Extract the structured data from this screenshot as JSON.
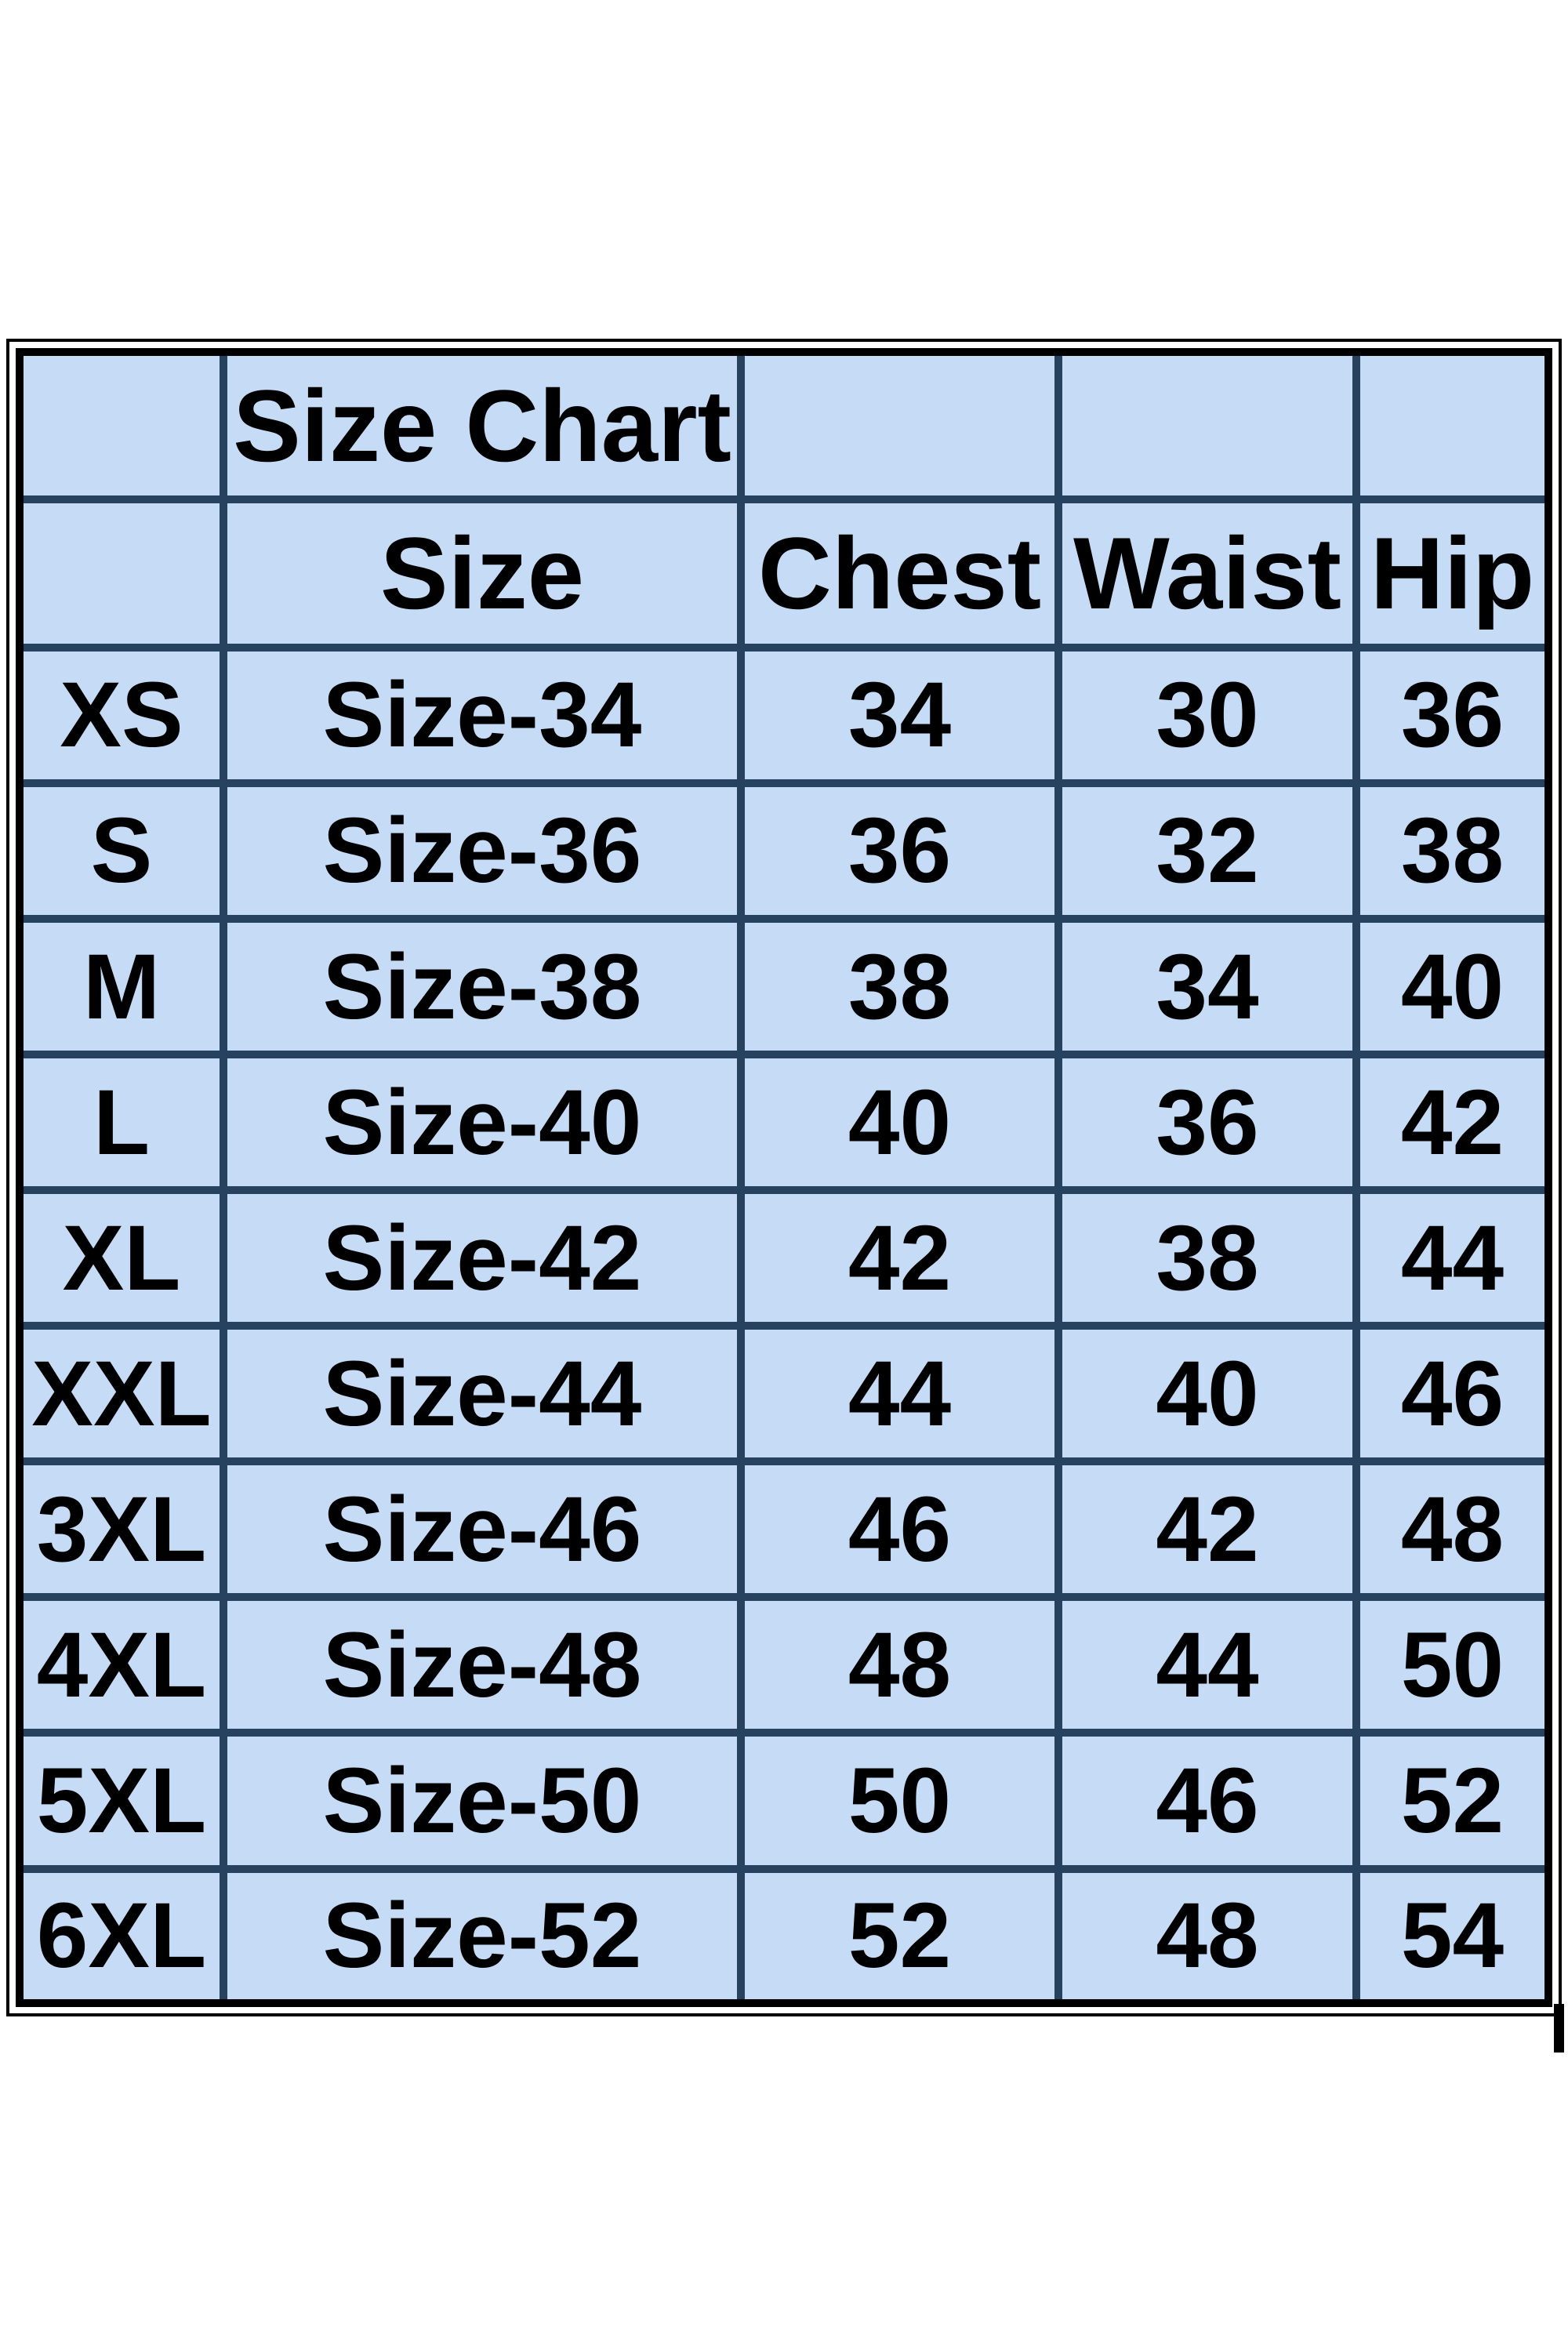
{
  "table": {
    "title": "Size Chart",
    "columns": [
      "Size",
      "Chest",
      "Waist",
      "Hip"
    ],
    "rows": [
      {
        "label": "XS",
        "size": "Size-34",
        "chest": "34",
        "waist": "30",
        "hip": "36"
      },
      {
        "label": "S",
        "size": "Size-36",
        "chest": "36",
        "waist": "32",
        "hip": "38"
      },
      {
        "label": "M",
        "size": "Size-38",
        "chest": "38",
        "waist": "34",
        "hip": "40"
      },
      {
        "label": "L",
        "size": "Size-40",
        "chest": "40",
        "waist": "36",
        "hip": "42"
      },
      {
        "label": "XL",
        "size": "Size-42",
        "chest": "42",
        "waist": "38",
        "hip": "44"
      },
      {
        "label": "XXL",
        "size": "Size-44",
        "chest": "44",
        "waist": "40",
        "hip": "46"
      },
      {
        "label": "3XL",
        "size": "Size-46",
        "chest": "46",
        "waist": "42",
        "hip": "48"
      },
      {
        "label": "4XL",
        "size": "Size-48",
        "chest": "48",
        "waist": "44",
        "hip": "50"
      },
      {
        "label": "5XL",
        "size": "Size-50",
        "chest": "50",
        "waist": "46",
        "hip": "52"
      },
      {
        "label": "6XL",
        "size": "Size-52",
        "chest": "52",
        "waist": "48",
        "hip": "54"
      }
    ]
  },
  "colors": {
    "cell_fill": "#c6dcf6",
    "corner_cell_fill": "#ffffff",
    "grid_line": "#26425e",
    "outer_border": "#000000",
    "text": "#000000"
  },
  "chart_data": {
    "type": "table",
    "title": "Size Chart",
    "columns": [
      "",
      "Size",
      "Chest",
      "Waist",
      "Hip"
    ],
    "rows": [
      [
        "XS",
        "Size-34",
        34,
        30,
        36
      ],
      [
        "S",
        "Size-36",
        36,
        32,
        38
      ],
      [
        "M",
        "Size-38",
        38,
        34,
        40
      ],
      [
        "L",
        "Size-40",
        40,
        36,
        42
      ],
      [
        "XL",
        "Size-42",
        42,
        38,
        44
      ],
      [
        "XXL",
        "Size-44",
        44,
        40,
        46
      ],
      [
        "3XL",
        "Size-46",
        46,
        42,
        48
      ],
      [
        "4XL",
        "Size-48",
        48,
        44,
        50
      ],
      [
        "5XL",
        "Size-50",
        50,
        46,
        52
      ],
      [
        "6XL",
        "Size-52",
        52,
        48,
        54
      ]
    ],
    "layout": {
      "grid": "on",
      "units_implied": "inches",
      "header_rows": 2
    }
  }
}
